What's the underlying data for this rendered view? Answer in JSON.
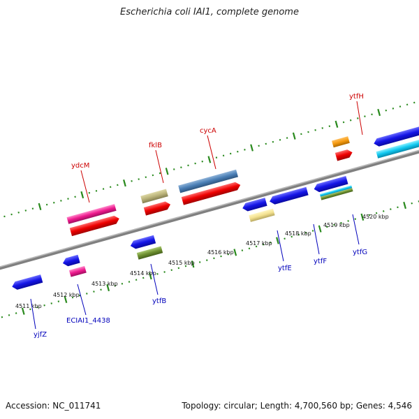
{
  "title": "Escherichia coli IAI1, complete genome",
  "footer": {
    "accession": "Accession: NC_011741",
    "summary": "Topology: circular; Length: 4,700,560 bp; Genes: 4,546"
  },
  "colors": {
    "backbone": "#808080",
    "dotted_track": "#2a8a1e",
    "forward_label": "#cc0000",
    "reverse_label": "#0000bb"
  },
  "ticks": [
    "4511 kbp",
    "4512 kbp",
    "4513 kbp",
    "4514 kbp",
    "4515 kbp",
    "4516 kbp",
    "4517 kbp",
    "4518 kbp",
    "4519 kbp",
    "4520 kbp"
  ],
  "labels": {
    "forward": [
      "ydcM",
      "fklB",
      "cycA",
      "ytfH"
    ],
    "reverse": [
      "yjfZ",
      "ECIAI1_4438",
      "ytfB",
      "ytfE",
      "ytfF",
      "ytfG"
    ]
  }
}
